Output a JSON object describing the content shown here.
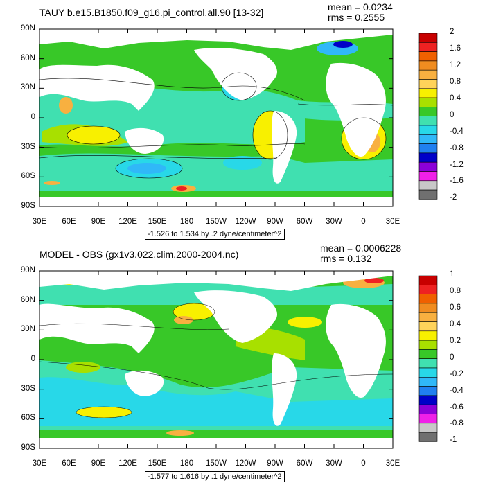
{
  "panels": [
    {
      "title": "TAUY b.e15.B1850.f09_g16.pi_control.all.90 [13-32]",
      "stats": {
        "mean": "mean = 0.0234",
        "rms": "rms = 0.2555"
      },
      "footer": "-1.526 to 1.534 by .2 dyne/centimeter^2",
      "lat_labels": [
        "90N",
        "60N",
        "30N",
        "0",
        "30S",
        "60S",
        "90S"
      ],
      "lon_labels": [
        "30E",
        "60E",
        "90E",
        "120E",
        "150E",
        "180",
        "150W",
        "120W",
        "90W",
        "60W",
        "30W",
        "0",
        "30E"
      ],
      "colorbar": {
        "labels": [
          "2",
          "1.6",
          "1.2",
          "0.8",
          "0.4",
          "0",
          "-0.4",
          "-0.8",
          "-1.2",
          "-1.6",
          "-2"
        ],
        "colors": [
          "#c80000",
          "#ee2222",
          "#f06000",
          "#f08c20",
          "#f8b040",
          "#ffd35a",
          "#f8f000",
          "#a8e000",
          "#38c828",
          "#40e0b0",
          "#28d8e8",
          "#30b8f8",
          "#2080f0",
          "#0000c8",
          "#8c00d8",
          "#f020e8",
          "#c8c8c8",
          "#707070"
        ]
      }
    },
    {
      "title": "MODEL - OBS (gx1v3.022.clim.2000-2004.nc)",
      "stats": {
        "mean": "mean = 0.0006228",
        "rms": "rms = 0.132"
      },
      "footer": "-1.577 to 1.616 by .1 dyne/centimeter^2",
      "lat_labels": [
        "90N",
        "60N",
        "30N",
        "0",
        "30S",
        "60S",
        "90S"
      ],
      "lon_labels": [
        "30E",
        "60E",
        "90E",
        "120E",
        "150E",
        "180",
        "150W",
        "120W",
        "90W",
        "60W",
        "30W",
        "0",
        "30E"
      ],
      "colorbar": {
        "labels": [
          "1",
          "0.8",
          "0.6",
          "0.4",
          "0.2",
          "0",
          "-0.2",
          "-0.4",
          "-0.6",
          "-0.8",
          "-1"
        ],
        "colors": [
          "#c80000",
          "#ee2222",
          "#f06000",
          "#f08c20",
          "#f8b040",
          "#ffd35a",
          "#f8f000",
          "#a8e000",
          "#38c828",
          "#40e0b0",
          "#28d8e8",
          "#30b8f8",
          "#2080f0",
          "#0000c8",
          "#8c00d8",
          "#f020e8",
          "#c8c8c8",
          "#707070"
        ]
      }
    }
  ],
  "field_colors": {
    "land": "#ffffff",
    "green": "#38c828",
    "cyan": "#40e0b0",
    "lightblue": "#28d8e8",
    "blue": "#30b8f8",
    "yellow": "#f8f000",
    "orange": "#f8b040",
    "red": "#ee2222",
    "navy": "#0000c8"
  }
}
